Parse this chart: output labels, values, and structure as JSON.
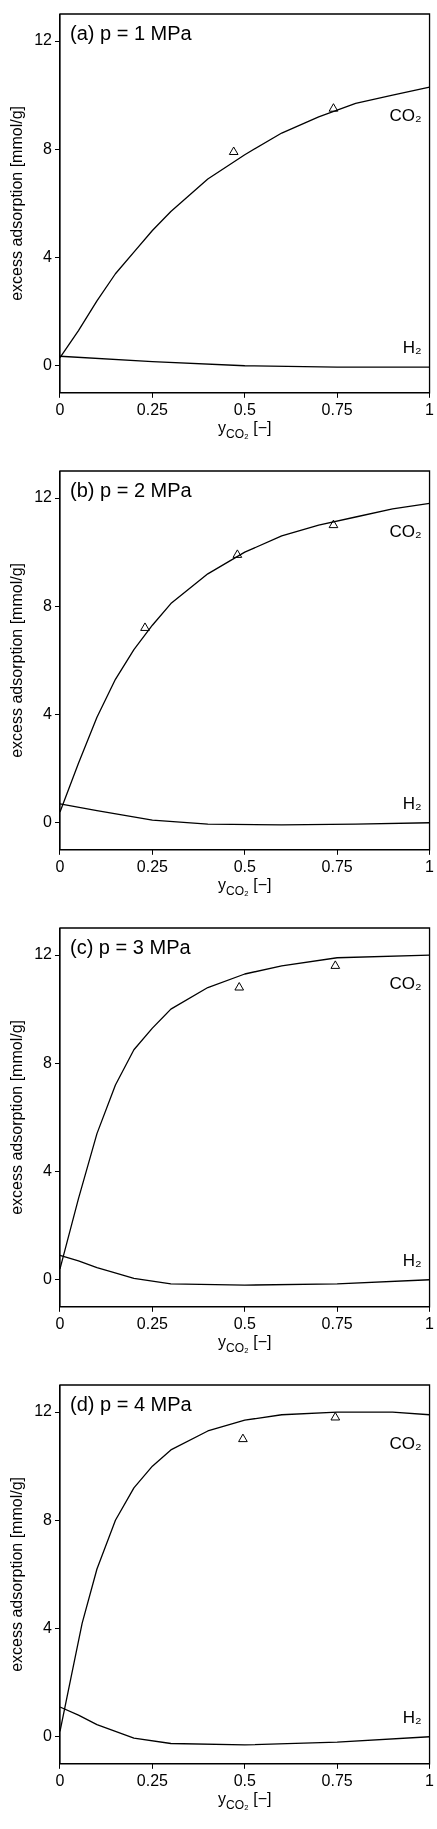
{
  "chart_data": [
    {
      "type": "line",
      "title": "(a) p = 1 MPa",
      "xlabel": "y$_{CO₂}$ [−]",
      "ylabel": "excess adsorption [mmol/g]",
      "xlim": [
        0,
        1
      ],
      "xticks": [
        0,
        0.25,
        0.5,
        0.75,
        1
      ],
      "ylim": [
        -1,
        13
      ],
      "yticks": [
        0,
        4,
        8,
        12
      ],
      "grid": false,
      "legend": false,
      "series": [
        {
          "name": "CO₂",
          "color": "#000000",
          "marker": "none",
          "x": [
            0,
            0.05,
            0.1,
            0.15,
            0.2,
            0.25,
            0.3,
            0.35,
            0.4,
            0.5,
            0.6,
            0.7,
            0.8,
            0.9,
            1
          ],
          "values": [
            0.3,
            1.3,
            2.4,
            3.4,
            4.2,
            5.0,
            5.7,
            6.3,
            6.9,
            7.8,
            8.6,
            9.2,
            9.7,
            10.0,
            10.3
          ]
        },
        {
          "name": "H₂",
          "color": "#000000",
          "marker": "none",
          "x": [
            0,
            0.25,
            0.5,
            0.75,
            1
          ],
          "values": [
            0.35,
            0.15,
            0.0,
            -0.05,
            -0.05
          ]
        },
        {
          "type": "scatter",
          "color": "#000000",
          "marker": "triangle",
          "x": [
            0.47,
            0.74
          ],
          "values": [
            7.9,
            9.5
          ]
        }
      ]
    },
    {
      "type": "line",
      "title": "(b) p = 2 MPa",
      "xlabel": "y$_{CO₂}$ [−]",
      "ylabel": "excess adsorption [mmol/g]",
      "xlim": [
        0,
        1
      ],
      "xticks": [
        0,
        0.25,
        0.5,
        0.75,
        1
      ],
      "ylim": [
        -1,
        13
      ],
      "yticks": [
        0,
        4,
        8,
        12
      ],
      "grid": false,
      "legend": false,
      "series": [
        {
          "name": "CO₂",
          "color": "#000000",
          "marker": "none",
          "x": [
            0,
            0.05,
            0.1,
            0.15,
            0.2,
            0.25,
            0.3,
            0.4,
            0.5,
            0.6,
            0.7,
            0.8,
            0.9,
            1
          ],
          "values": [
            0.4,
            2.2,
            3.9,
            5.3,
            6.4,
            7.3,
            8.1,
            9.2,
            10.0,
            10.6,
            11.0,
            11.3,
            11.6,
            11.8
          ]
        },
        {
          "name": "H₂",
          "color": "#000000",
          "marker": "none",
          "x": [
            0,
            0.1,
            0.25,
            0.4,
            0.6,
            0.8,
            1
          ],
          "values": [
            0.7,
            0.45,
            0.1,
            -0.05,
            -0.08,
            -0.05,
            0
          ]
        },
        {
          "type": "scatter",
          "color": "#000000",
          "marker": "triangle",
          "x": [
            0.23,
            0.48,
            0.74
          ],
          "values": [
            7.2,
            9.9,
            11.0
          ]
        }
      ]
    },
    {
      "type": "line",
      "title": "(c) p = 3 MPa",
      "xlabel": "y$_{CO₂}$ [−]",
      "ylabel": "excess adsorption [mmol/g]",
      "xlim": [
        0,
        1
      ],
      "xticks": [
        0,
        0.25,
        0.5,
        0.75,
        1
      ],
      "ylim": [
        -1,
        13
      ],
      "yticks": [
        0,
        4,
        8,
        12
      ],
      "grid": false,
      "legend": false,
      "series": [
        {
          "name": "CO₂",
          "color": "#000000",
          "marker": "none",
          "x": [
            0,
            0.05,
            0.1,
            0.15,
            0.2,
            0.25,
            0.3,
            0.4,
            0.5,
            0.6,
            0.75,
            1
          ],
          "values": [
            0.4,
            3.0,
            5.4,
            7.2,
            8.5,
            9.3,
            10.0,
            10.8,
            11.3,
            11.6,
            11.9,
            12.0
          ]
        },
        {
          "name": "H₂",
          "color": "#000000",
          "marker": "none",
          "x": [
            0,
            0.05,
            0.1,
            0.2,
            0.3,
            0.5,
            0.75,
            1
          ],
          "values": [
            0.9,
            0.7,
            0.45,
            0.05,
            -0.15,
            -0.2,
            -0.15,
            0
          ]
        },
        {
          "type": "scatter",
          "color": "#000000",
          "marker": "triangle",
          "x": [
            0.485,
            0.745
          ],
          "values": [
            10.8,
            11.6
          ]
        }
      ]
    },
    {
      "type": "line",
      "title": "(d) p = 4 MPa",
      "xlabel": "y$_{CO₂}$ [−]",
      "ylabel": "excess adsorption [mmol/g]",
      "xlim": [
        0,
        1
      ],
      "xticks": [
        0,
        0.25,
        0.5,
        0.75,
        1
      ],
      "ylim": [
        -1,
        13
      ],
      "yticks": [
        0,
        4,
        8,
        12
      ],
      "grid": false,
      "legend": false,
      "series": [
        {
          "name": "CO₂",
          "color": "#000000",
          "marker": "none",
          "x": [
            0,
            0.03,
            0.06,
            0.1,
            0.15,
            0.2,
            0.25,
            0.3,
            0.4,
            0.5,
            0.6,
            0.75,
            0.9,
            1
          ],
          "values": [
            0.2,
            2.2,
            4.2,
            6.2,
            8.0,
            9.2,
            10.0,
            10.6,
            11.3,
            11.7,
            11.9,
            12.0,
            12.0,
            11.9
          ]
        },
        {
          "name": "H₂",
          "color": "#000000",
          "marker": "none",
          "x": [
            0,
            0.05,
            0.1,
            0.2,
            0.3,
            0.5,
            0.75,
            1
          ],
          "values": [
            1.1,
            0.8,
            0.45,
            -0.05,
            -0.25,
            -0.3,
            -0.2,
            0
          ]
        },
        {
          "type": "scatter",
          "color": "#000000",
          "marker": "triangle",
          "x": [
            0.495,
            0.745
          ],
          "values": [
            11.0,
            11.8
          ]
        }
      ]
    }
  ]
}
